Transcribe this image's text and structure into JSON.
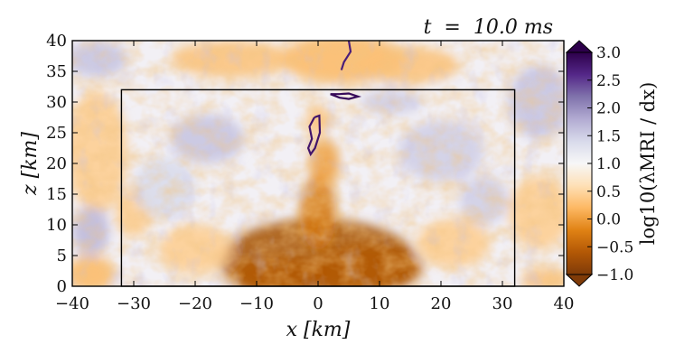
{
  "chart_data": {
    "type": "heatmap",
    "time_label": "t  =  10.0 ms",
    "xlabel": "x [km]",
    "ylabel": "z [km]",
    "colorbar_label": "log10(λMRI / dx)",
    "xlim": [
      -40,
      40
    ],
    "ylim": [
      0,
      40
    ],
    "x_ticks": [
      -40,
      -30,
      -20,
      -10,
      0,
      10,
      20,
      30,
      40
    ],
    "y_ticks": [
      0,
      5,
      10,
      15,
      20,
      25,
      30,
      35,
      40
    ],
    "colorbar_range": [
      -1.0,
      3.0
    ],
    "colorbar_ticks": [
      -1.0,
      -0.5,
      0.0,
      0.5,
      1.0,
      1.5,
      2.0,
      2.5,
      3.0
    ],
    "colorbar_tick_labels": [
      "−1.0",
      "−0.5",
      "0.0",
      "0.5",
      "1.0",
      "1.5",
      "2.0",
      "2.5",
      "3.0"
    ],
    "colormap": [
      "#7f3b08",
      "#b35806",
      "#e08214",
      "#fdb863",
      "#fee0b6",
      "#f7f7f7",
      "#d8daeb",
      "#b2abd2",
      "#8073ac",
      "#542788",
      "#2d004b"
    ],
    "inner_box": {
      "x": [
        -32,
        32
      ],
      "z": [
        0,
        32
      ]
    },
    "patches": [
      {
        "x": 0,
        "z": 4,
        "rx": 16,
        "rz": 7,
        "v": -0.7
      },
      {
        "x": -6,
        "z": 2,
        "rx": 8,
        "rz": 3,
        "v": -0.6
      },
      {
        "x": 8,
        "z": 3,
        "rx": 9,
        "rz": 4,
        "v": -0.6
      },
      {
        "x": 0,
        "z": 12,
        "rx": 3,
        "rz": 6,
        "v": -0.3
      },
      {
        "x": 1,
        "z": 20,
        "rx": 2.5,
        "rz": 4,
        "v": 0.0
      },
      {
        "x": 0,
        "z": 27,
        "rx": 2,
        "rz": 2.5,
        "v": 0.3
      },
      {
        "x": 4,
        "z": 37,
        "rx": 10,
        "rz": 4,
        "v": 0.2
      },
      {
        "x": 15,
        "z": 36,
        "rx": 8,
        "rz": 3,
        "v": 0.3
      },
      {
        "x": -14,
        "z": 37,
        "rx": 10,
        "rz": 3,
        "v": 0.3
      },
      {
        "x": -36,
        "z": 22,
        "rx": 5,
        "rz": 10,
        "v": 0.4
      },
      {
        "x": -37,
        "z": 2,
        "rx": 4,
        "rz": 3,
        "v": 0.2
      },
      {
        "x": -30,
        "z": 12,
        "rx": 3,
        "rz": 4,
        "v": 0.4
      },
      {
        "x": 36,
        "z": 12,
        "rx": 5,
        "rz": 6,
        "v": 0.4
      },
      {
        "x": 37,
        "z": 1,
        "rx": 4,
        "rz": 2,
        "v": 0.3
      },
      {
        "x": -20,
        "z": 6,
        "rx": 6,
        "rz": 4,
        "v": 0.4
      },
      {
        "x": 22,
        "z": 7,
        "rx": 6,
        "rz": 4,
        "v": 0.4
      },
      {
        "x": -18,
        "z": 24,
        "rx": 6,
        "rz": 4,
        "v": 1.6
      },
      {
        "x": 20,
        "z": 22,
        "rx": 7,
        "rz": 5,
        "v": 1.5
      },
      {
        "x": -36,
        "z": 37,
        "rx": 5,
        "rz": 3,
        "v": 1.6
      },
      {
        "x": 36,
        "z": 30,
        "rx": 5,
        "rz": 6,
        "v": 1.6
      },
      {
        "x": -37,
        "z": 9,
        "rx": 3,
        "rz": 4,
        "v": 1.7
      },
      {
        "x": 27,
        "z": 14,
        "rx": 4,
        "rz": 4,
        "v": 1.5
      },
      {
        "x": -25,
        "z": 16,
        "rx": 5,
        "rz": 5,
        "v": 1.4
      },
      {
        "x": 12,
        "z": 30,
        "rx": 5,
        "rz": 2,
        "v": 1.5
      }
    ],
    "contours": [
      {
        "v": 2.8,
        "points": [
          [
            -0.6,
            27.5
          ],
          [
            -1.4,
            26
          ],
          [
            -1.0,
            24
          ],
          [
            -1.6,
            22.5
          ],
          [
            -1.2,
            21.5
          ],
          [
            -0.5,
            22.5
          ],
          [
            0.3,
            25
          ],
          [
            0.2,
            27.8
          ],
          [
            -0.6,
            27.5
          ]
        ]
      },
      {
        "v": 2.9,
        "points": [
          [
            2.0,
            31.3
          ],
          [
            3.5,
            30.7
          ],
          [
            5.0,
            30.5
          ],
          [
            6.5,
            30.9
          ],
          [
            5.0,
            31.4
          ],
          [
            3.5,
            31.3
          ],
          [
            2.0,
            31.3
          ]
        ]
      },
      {
        "v": 2.7,
        "points": [
          [
            5.0,
            40
          ],
          [
            5.3,
            38.2
          ],
          [
            4.2,
            36.5
          ],
          [
            3.8,
            35.2
          ]
        ]
      }
    ]
  }
}
